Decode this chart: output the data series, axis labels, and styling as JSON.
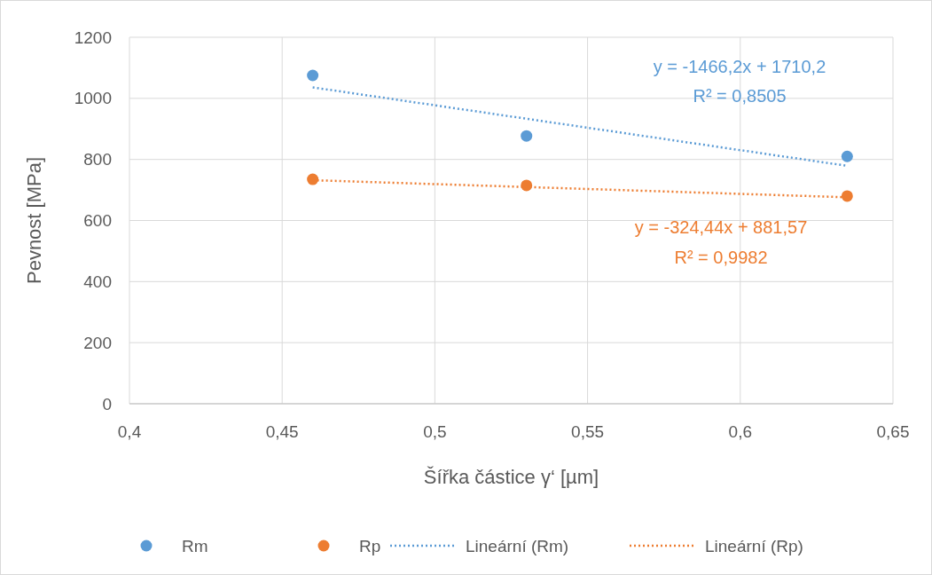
{
  "chart_data": {
    "type": "scatter",
    "xlabel": "Šířka částice  γ‘  [µm]",
    "ylabel": "Pevnost [MPa]",
    "xlim": [
      0.4,
      0.65
    ],
    "ylim": [
      0,
      1200
    ],
    "xticks": [
      {
        "value": 0.4,
        "label": "0,4"
      },
      {
        "value": 0.45,
        "label": "0,45"
      },
      {
        "value": 0.5,
        "label": "0,5"
      },
      {
        "value": 0.55,
        "label": "0,55"
      },
      {
        "value": 0.6,
        "label": "0,6"
      },
      {
        "value": 0.65,
        "label": "0,65"
      }
    ],
    "yticks": [
      0,
      200,
      400,
      600,
      800,
      1000,
      1200
    ],
    "grid": true,
    "legend": "bottom",
    "marker": "circle",
    "series": [
      {
        "name": "Rm",
        "color": "#5b9bd5",
        "x": [
          0.46,
          0.53,
          0.635
        ],
        "values": [
          1075,
          877,
          810
        ]
      },
      {
        "name": "Rp",
        "color": "#ed7d31",
        "x": [
          0.46,
          0.53,
          0.635
        ],
        "values": [
          735,
          715,
          680
        ]
      },
      {
        "name": "Lineární (Rm)",
        "type": "line",
        "marker": "none",
        "line_style": "dotted",
        "color": "#5b9bd5",
        "x": [
          0.46,
          0.635
        ],
        "values": [
          1036,
          779
        ]
      },
      {
        "name": "Lineární (Rp)",
        "type": "line",
        "marker": "none",
        "line_style": "dotted",
        "color": "#ed7d31",
        "x": [
          0.46,
          0.635
        ],
        "values": [
          732,
          676
        ]
      }
    ],
    "annotations": [
      "y = -1466,2x + 1710,2",
      "R² = 0,8505",
      "y = -324,44x + 881,57",
      "R² = 0,9982"
    ]
  }
}
